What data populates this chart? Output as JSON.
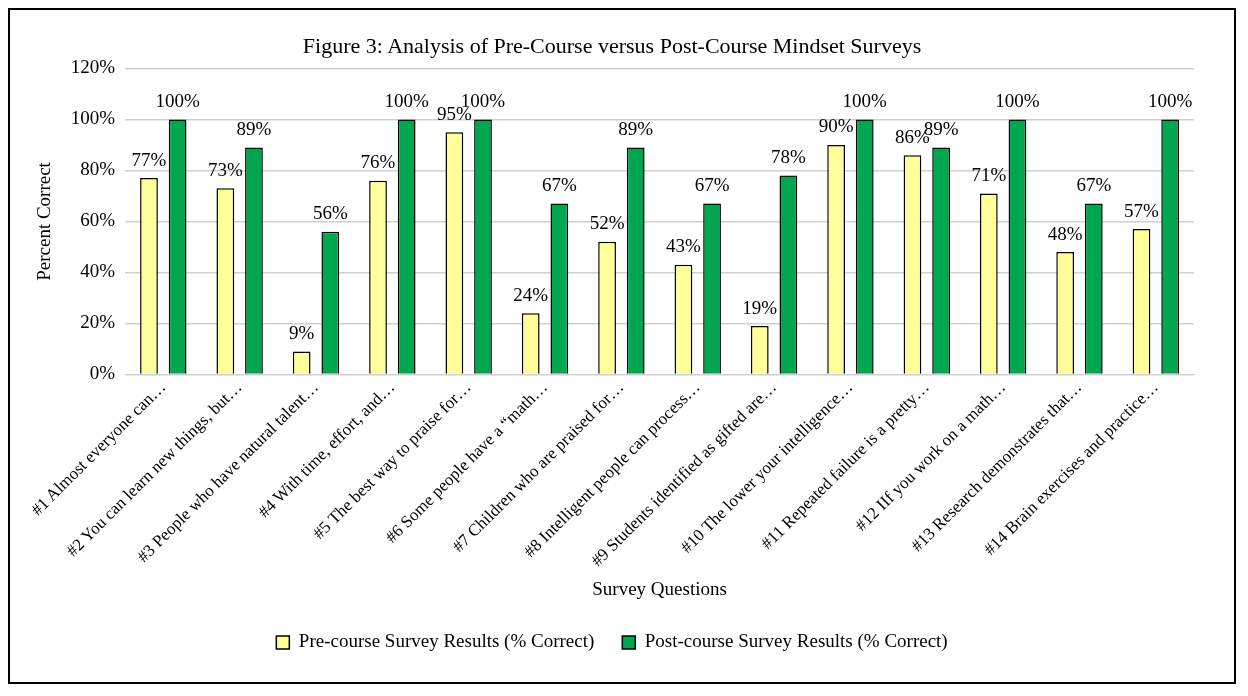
{
  "chart_data": {
    "type": "bar",
    "title": "Figure 3: Analysis of Pre-Course versus Post-Course Mindset Surveys",
    "xlabel": "Survey Questions",
    "ylabel": "Percent Correct",
    "categories": [
      "#1 Almost everyone can…",
      "#2 You can learn new things, but…",
      "#3 People who have natural talent…",
      "#4 With time, effort, and…",
      "#5 The best way to praise for…",
      "#6 Some people have a “math…",
      "#7 Children who are praised for…",
      "#8 Intelligent people can process…",
      "#9 Students identified as gifted are…",
      "#10 The lower your intelligence…",
      "#11 Repeated failure is a pretty…",
      "#12 IIf you work on a math…",
      "#13 Research demonstrates that…",
      "#14 Brain exercises and practice…"
    ],
    "series": [
      {
        "name": "Pre-course Survey Results (% Correct)",
        "color": "#ffff99",
        "values": [
          77,
          73,
          9,
          76,
          95,
          24,
          52,
          43,
          19,
          90,
          86,
          71,
          48,
          57
        ],
        "value_labels": [
          "77%",
          "73%",
          "9%",
          "76%",
          "95%",
          "24%",
          "52%",
          "43%",
          "19%",
          "90%",
          "86%",
          "71%",
          "48%",
          "57%"
        ]
      },
      {
        "name": "Post-course Survey Results (% Correct)",
        "color": "#00a650",
        "values": [
          100,
          89,
          56,
          100,
          100,
          67,
          89,
          67,
          78,
          100,
          89,
          100,
          67,
          100
        ],
        "value_labels": [
          "100%",
          "89%",
          "56%",
          "100%",
          "100%",
          "67%",
          "89%",
          "67%",
          "78%",
          "100%",
          "89%",
          "100%",
          "67%",
          "100%"
        ]
      }
    ],
    "ylim": [
      0,
      120
    ],
    "yticks": [
      {
        "value": 0,
        "label": "0%"
      },
      {
        "value": 20,
        "label": "20%"
      },
      {
        "value": 40,
        "label": "40%"
      },
      {
        "value": 60,
        "label": "60%"
      },
      {
        "value": 80,
        "label": "80%"
      },
      {
        "value": 100,
        "label": "100%"
      },
      {
        "value": 120,
        "label": "120%"
      }
    ],
    "grid": "y",
    "legend": "bottom"
  }
}
